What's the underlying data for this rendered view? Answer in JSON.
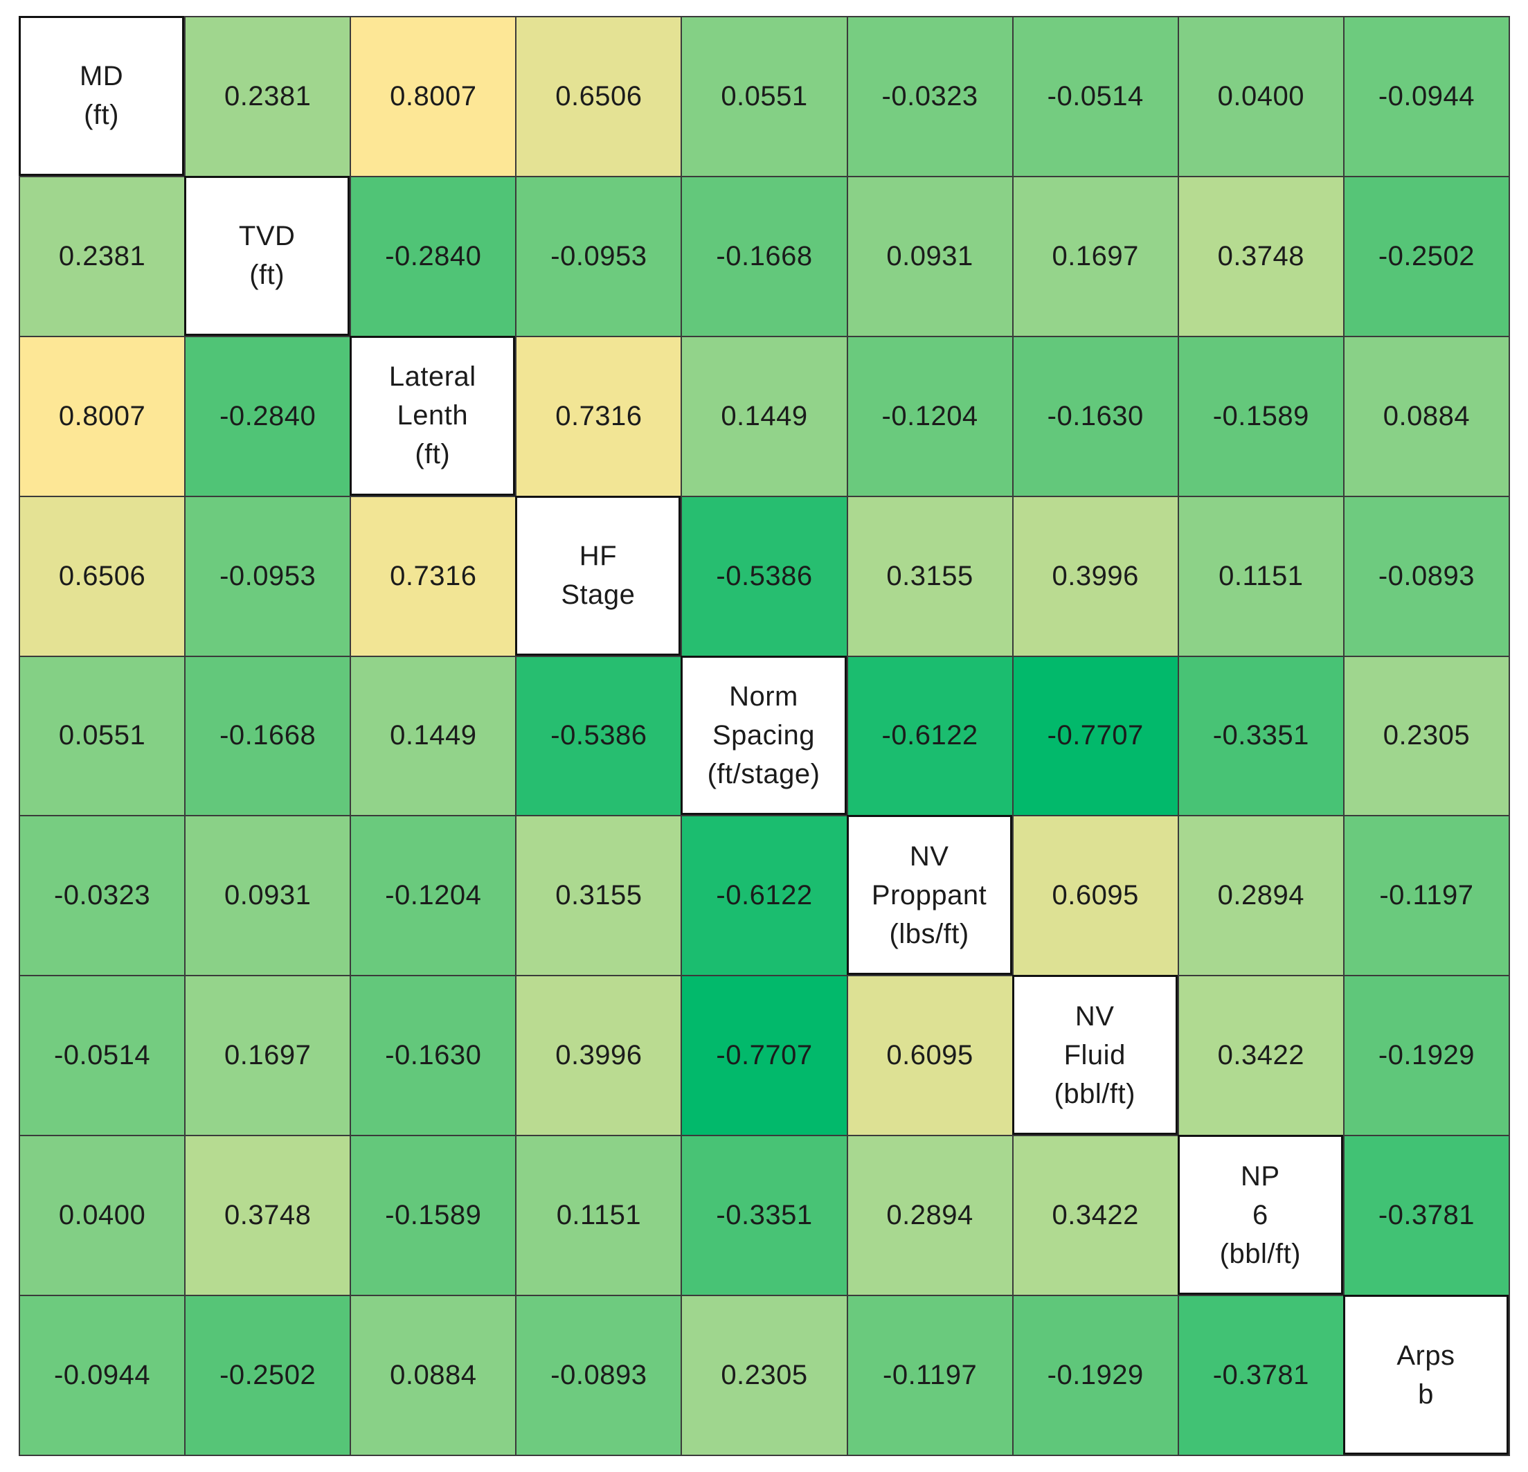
{
  "chart_data": {
    "type": "heatmap",
    "variables": [
      [
        "MD",
        "(ft)"
      ],
      [
        "TVD",
        "(ft)"
      ],
      [
        "Lateral",
        "Lenth",
        "(ft)"
      ],
      [
        "HF",
        "Stage"
      ],
      [
        "Norm",
        "Spacing",
        "(ft/stage)"
      ],
      [
        "NV",
        "Proppant",
        "(lbs/ft)"
      ],
      [
        "NV",
        "Fluid",
        "(bbl/ft)"
      ],
      [
        "NP",
        "6",
        "(bbl/ft)"
      ],
      [
        "Arps",
        "b"
      ]
    ],
    "matrix": [
      [
        null,
        "0.2381",
        "0.8007",
        "0.6506",
        "0.0551",
        "-0.0323",
        "-0.0514",
        "0.0400",
        "-0.0944"
      ],
      [
        "0.2381",
        null,
        "-0.2840",
        "-0.0953",
        "-0.1668",
        "0.0931",
        "0.1697",
        "0.3748",
        "-0.2502"
      ],
      [
        "0.8007",
        "-0.2840",
        null,
        "0.7316",
        "0.1449",
        "-0.1204",
        "-0.1630",
        "-0.1589",
        "0.0884"
      ],
      [
        "0.6506",
        "-0.0953",
        "0.7316",
        null,
        "-0.5386",
        "0.3155",
        "0.3996",
        "0.1151",
        "-0.0893"
      ],
      [
        "0.0551",
        "-0.1668",
        "0.1449",
        "-0.5386",
        null,
        "-0.6122",
        "-0.7707",
        "-0.3351",
        "0.2305"
      ],
      [
        "-0.0323",
        "0.0931",
        "-0.1204",
        "0.3155",
        "-0.6122",
        null,
        "0.6095",
        "0.2894",
        "-0.1197"
      ],
      [
        "-0.0514",
        "0.1697",
        "-0.1630",
        "0.3996",
        "-0.7707",
        "0.6095",
        null,
        "0.3422",
        "-0.1929"
      ],
      [
        "0.0400",
        "0.3748",
        "-0.1589",
        "0.1151",
        "-0.3351",
        "0.2894",
        "0.3422",
        null,
        "-0.3781"
      ],
      [
        "-0.0944",
        "-0.2502",
        "0.0884",
        "-0.0893",
        "0.2305",
        "-0.1197",
        "-0.1929",
        "-0.3781",
        null
      ]
    ],
    "color_scale": {
      "min_value": -0.78,
      "max_value": 0.81,
      "stops": [
        "#00b96b",
        "#56c577",
        "#a6d890",
        "#ffe796"
      ]
    }
  }
}
